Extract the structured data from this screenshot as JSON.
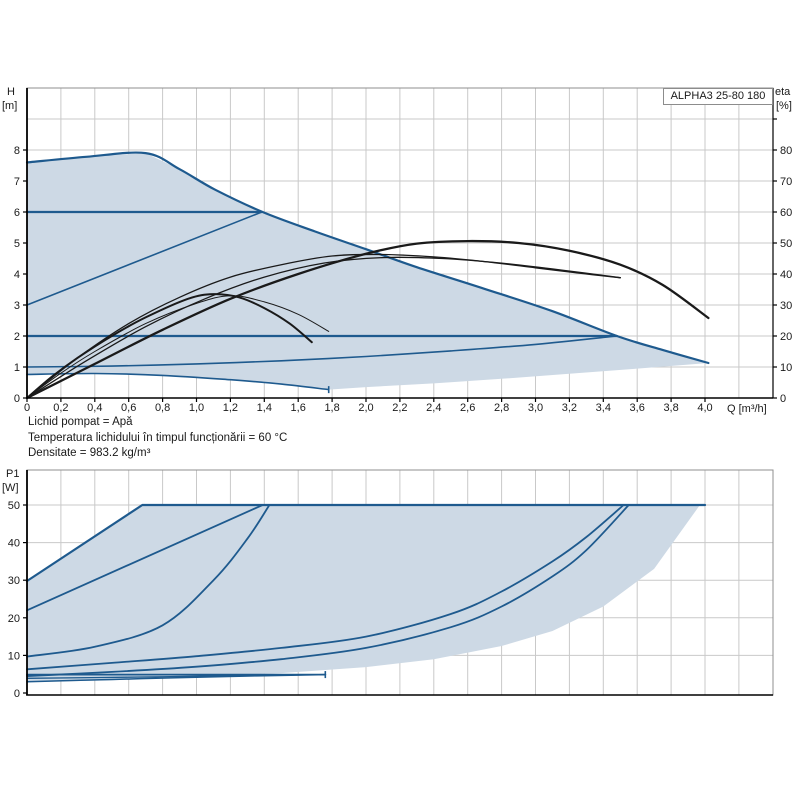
{
  "pump_label": "ALPHA3 25-80 180",
  "axis_titles": {
    "head_symbol": "H",
    "head_unit": "[m]",
    "eff_symbol": "eta",
    "eff_unit": "[%]",
    "power_symbol": "P1",
    "power_unit": "[W]",
    "flow": "Q [m³/h]"
  },
  "notes": [
    "Lichid pompat = Apă",
    "Temperatura lichidului în timpul funcționării = 60 °C",
    "Densitate = 983.2 kg/m³"
  ],
  "colors": {
    "fill": "#cdd9e5",
    "blue": "#1e5a8e",
    "black": "#1a1a1a",
    "grid": "#c9c9c9",
    "border": "#8f8f8f",
    "axis": "#000000",
    "text": "#1a1a1a"
  },
  "chart_data": [
    {
      "type": "line",
      "title": "ALPHA3 25-80 180",
      "xlabel": "Q [m³/h]",
      "ylabel": "H [m]",
      "y2label": "eta [%]",
      "xlim": [
        0,
        4.4
      ],
      "ylim": [
        0,
        10
      ],
      "y2lim": [
        0,
        100
      ],
      "grid": true,
      "x_tick_step": 0.2,
      "x_tick_labels": [
        "0",
        "0,2",
        "0,4",
        "0,6",
        "0,8",
        "1,0",
        "1,2",
        "1,4",
        "1,6",
        "1,8",
        "2,0",
        "2,2",
        "2,4",
        "2,6",
        "2,8",
        "3,0",
        "3,2",
        "3,4",
        "3,6",
        "3,8",
        "4,0"
      ],
      "y_tick_labels": [
        "0",
        "1",
        "2",
        "3",
        "4",
        "5",
        "6",
        "7",
        "8"
      ],
      "y2_tick_labels": [
        "0",
        "10",
        "20",
        "30",
        "40",
        "50",
        "60",
        "70",
        "80"
      ],
      "envelope": [
        [
          0,
          7.6
        ],
        [
          0.35,
          7.78
        ],
        [
          0.7,
          7.9
        ],
        [
          0.9,
          7.38
        ],
        [
          1.11,
          6.72
        ],
        [
          1.39,
          6.0
        ],
        [
          1.7,
          5.37
        ],
        [
          2.0,
          4.8
        ],
        [
          2.3,
          4.22
        ],
        [
          2.7,
          3.52
        ],
        [
          3.1,
          2.8
        ],
        [
          3.48,
          2.0
        ],
        [
          3.75,
          1.55
        ],
        [
          4.02,
          1.13
        ],
        [
          3.6,
          0.95
        ],
        [
          3.2,
          0.78
        ],
        [
          2.8,
          0.62
        ],
        [
          2.4,
          0.47
        ],
        [
          2.0,
          0.35
        ],
        [
          1.78,
          0.27
        ],
        [
          1.5,
          0.45
        ],
        [
          1.2,
          0.59
        ],
        [
          0.8,
          0.73
        ],
        [
          0.4,
          0.79
        ],
        [
          0,
          0.76
        ]
      ],
      "series": [
        {
          "name": "max-speed-curve",
          "axis": "y",
          "color": "blue",
          "width": 2.2,
          "points": [
            [
              0,
              7.6
            ],
            [
              0.35,
              7.78
            ],
            [
              0.7,
              7.9
            ],
            [
              0.9,
              7.38
            ],
            [
              1.11,
              6.72
            ],
            [
              1.39,
              6.0
            ],
            [
              1.7,
              5.37
            ],
            [
              2.0,
              4.8
            ],
            [
              2.3,
              4.22
            ],
            [
              2.7,
              3.52
            ],
            [
              3.1,
              2.8
            ],
            [
              3.48,
              2.0
            ],
            [
              3.75,
              1.55
            ],
            [
              4.02,
              1.13
            ]
          ]
        },
        {
          "name": "constant-pressure-6m",
          "axis": "y",
          "color": "blue",
          "width": 2.2,
          "smooth": false,
          "points": [
            [
              0,
              6
            ],
            [
              1.385,
              6
            ]
          ]
        },
        {
          "name": "constant-pressure-2m",
          "axis": "y",
          "color": "blue",
          "width": 2.2,
          "smooth": false,
          "points": [
            [
              0,
              2
            ],
            [
              3.48,
              2
            ]
          ]
        },
        {
          "name": "prop-pressure-max",
          "axis": "y",
          "color": "blue",
          "width": 1.6,
          "smooth": false,
          "points": [
            [
              0,
              3
            ],
            [
              1.385,
              6
            ]
          ]
        },
        {
          "name": "prop-pressure-min",
          "axis": "y",
          "color": "blue",
          "width": 1.6,
          "points": [
            [
              0,
              1.0
            ],
            [
              0.5,
              1.03
            ],
            [
              1.0,
              1.1
            ],
            [
              1.5,
              1.2
            ],
            [
              2.0,
              1.34
            ],
            [
              2.5,
              1.52
            ],
            [
              3.0,
              1.73
            ],
            [
              3.48,
              2.0
            ]
          ]
        },
        {
          "name": "min-speed-curve",
          "axis": "y",
          "color": "blue",
          "width": 1.6,
          "cap": true,
          "points": [
            [
              0,
              0.76
            ],
            [
              0.4,
              0.79
            ],
            [
              0.8,
              0.73
            ],
            [
              1.2,
              0.59
            ],
            [
              1.5,
              0.45
            ],
            [
              1.78,
              0.27
            ]
          ]
        },
        {
          "name": "eta-curve-low-1",
          "axis": "y2",
          "color": "black",
          "width": 2.0,
          "points": [
            [
              0,
              0
            ],
            [
              0.15,
              7
            ],
            [
              0.3,
              13
            ],
            [
              0.5,
              20
            ],
            [
              0.7,
              26
            ],
            [
              0.95,
              32
            ],
            [
              1.1,
              33.5
            ],
            [
              1.25,
              32.5
            ],
            [
              1.4,
              29
            ],
            [
              1.55,
              24
            ],
            [
              1.68,
              18
            ]
          ]
        },
        {
          "name": "eta-curve-low-2",
          "axis": "y2",
          "color": "black",
          "width": 1.0,
          "points": [
            [
              0,
              0
            ],
            [
              0.2,
              8
            ],
            [
              0.4,
              15
            ],
            [
              0.7,
              24
            ],
            [
              1.0,
              30.5
            ],
            [
              1.2,
              33
            ],
            [
              1.4,
              31
            ],
            [
              1.6,
              27
            ],
            [
              1.78,
              21.5
            ]
          ]
        },
        {
          "name": "eta-curve-mid-1",
          "axis": "y2",
          "color": "black",
          "width": 1.3,
          "points": [
            [
              0,
              0
            ],
            [
              0.3,
              13
            ],
            [
              0.6,
              24
            ],
            [
              0.9,
              32.5
            ],
            [
              1.2,
              39
            ],
            [
              1.5,
              43
            ],
            [
              1.8,
              45.8
            ],
            [
              2.1,
              46.3
            ],
            [
              2.4,
              45.5
            ],
            [
              2.7,
              44
            ],
            [
              3.0,
              42
            ],
            [
              3.3,
              40
            ],
            [
              3.5,
              38.8
            ]
          ]
        },
        {
          "name": "eta-curve-mid-2",
          "axis": "y2",
          "color": "black",
          "width": 1.3,
          "points": [
            [
              0,
              0
            ],
            [
              0.35,
              12
            ],
            [
              0.7,
              23
            ],
            [
              1.05,
              32
            ],
            [
              1.4,
              39
            ],
            [
              1.75,
              43.5
            ],
            [
              2.1,
              45.3
            ],
            [
              2.45,
              45
            ],
            [
              2.8,
              43.5
            ],
            [
              3.15,
              41.3
            ],
            [
              3.5,
              38.8
            ]
          ]
        },
        {
          "name": "eta-curve-max",
          "axis": "y2",
          "color": "black",
          "width": 2.3,
          "points": [
            [
              0,
              0
            ],
            [
              0.4,
              11
            ],
            [
              0.8,
              22
            ],
            [
              1.2,
              32
            ],
            [
              1.6,
              40
            ],
            [
              2.0,
              46.5
            ],
            [
              2.3,
              49.8
            ],
            [
              2.6,
              50.6
            ],
            [
              2.9,
              50
            ],
            [
              3.2,
              47.5
            ],
            [
              3.5,
              43
            ],
            [
              3.75,
              36.5
            ],
            [
              4.02,
              25.8
            ]
          ]
        }
      ]
    },
    {
      "type": "line",
      "title": "",
      "xlabel": "",
      "ylabel": "P1 [W]",
      "xlim": [
        0,
        4.4
      ],
      "ylim": [
        0,
        59.3
      ],
      "grid": true,
      "x_tick_step": 0.2,
      "x_tick_labels": [],
      "y_tick_labels": [
        "0",
        "10",
        "20",
        "30",
        "40",
        "50"
      ],
      "envelope": [
        [
          0,
          29.8
        ],
        [
          0.68,
          50
        ],
        [
          3.97,
          50
        ],
        [
          3.7,
          33
        ],
        [
          3.4,
          23
        ],
        [
          3.1,
          16.5
        ],
        [
          2.8,
          12.5
        ],
        [
          2.4,
          9
        ],
        [
          2.0,
          6.9
        ],
        [
          1.5,
          5.3
        ],
        [
          1.0,
          4.3
        ],
        [
          0.5,
          3.4
        ],
        [
          0,
          2.9
        ]
      ],
      "series": [
        {
          "name": "power-max-speed",
          "axis": "y",
          "color": "blue",
          "width": 2.2,
          "smooth": false,
          "points": [
            [
              0,
              29.8
            ],
            [
              0.68,
              50
            ],
            [
              4.0,
              50
            ]
          ]
        },
        {
          "name": "power-cc-6m",
          "axis": "y",
          "color": "blue",
          "width": 1.8,
          "smooth": false,
          "points": [
            [
              0,
              22
            ],
            [
              1.39,
              50
            ]
          ]
        },
        {
          "name": "power-prop-max",
          "axis": "y",
          "color": "blue",
          "width": 1.8,
          "points": [
            [
              0,
              9.7
            ],
            [
              0.4,
              12.3
            ],
            [
              0.8,
              18
            ],
            [
              1.1,
              30
            ],
            [
              1.3,
              41
            ],
            [
              1.43,
              50
            ]
          ]
        },
        {
          "name": "power-cc-2m",
          "axis": "y",
          "color": "blue",
          "width": 1.8,
          "points": [
            [
              0,
              6.3
            ],
            [
              0.5,
              8
            ],
            [
              1.0,
              9.8
            ],
            [
              1.5,
              12
            ],
            [
              2.0,
              15
            ],
            [
              2.5,
              21
            ],
            [
              2.8,
              27
            ],
            [
              3.1,
              35
            ],
            [
              3.3,
              41.5
            ],
            [
              3.52,
              50
            ]
          ]
        },
        {
          "name": "power-prop-min",
          "axis": "y",
          "color": "blue",
          "width": 1.8,
          "points": [
            [
              0,
              4.5
            ],
            [
              0.5,
              5.6
            ],
            [
              1.0,
              7
            ],
            [
              1.5,
              9
            ],
            [
              2.0,
              12
            ],
            [
              2.5,
              17.5
            ],
            [
              2.8,
              23
            ],
            [
              3.1,
              31
            ],
            [
              3.3,
              38
            ],
            [
              3.55,
              50
            ]
          ]
        },
        {
          "name": "power-min-speed-1",
          "axis": "y",
          "color": "blue",
          "width": 1.5,
          "points": [
            [
              0,
              3.0
            ],
            [
              0.5,
              3.6
            ],
            [
              1.0,
              4.2
            ],
            [
              1.4,
              4.6
            ],
            [
              1.76,
              4.9
            ]
          ]
        },
        {
          "name": "power-min-speed-2",
          "axis": "y",
          "color": "blue",
          "width": 1.3,
          "points": [
            [
              0,
              3.9
            ],
            [
              0.6,
              4.2
            ],
            [
              1.2,
              4.6
            ],
            [
              1.76,
              4.9
            ]
          ]
        },
        {
          "name": "power-min-flat",
          "axis": "y",
          "color": "blue",
          "width": 1.8,
          "smooth": false,
          "cap": true,
          "points": [
            [
              0,
              4.9
            ],
            [
              1.76,
              4.9
            ]
          ]
        }
      ]
    }
  ]
}
